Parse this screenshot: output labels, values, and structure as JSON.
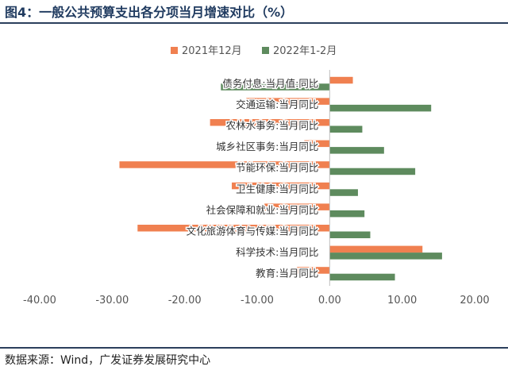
{
  "header": {
    "title": "图4：一般公共预算支出各分项当月增速对比（%）"
  },
  "footer": {
    "source": "数据来源：Wind，广发证券发展研究中心"
  },
  "chart_data": {
    "type": "bar",
    "orientation": "horizontal",
    "categories": [
      "债务付息:当月值:同比",
      "交通运输:当月同比",
      "农林水事务:当月同比",
      "城乡社区事务:当月同比",
      "节能环保:当月同比",
      "卫生健康:当月同比",
      "社会保障和就业:当月同比",
      "文化旅游体育与传媒:当月同比",
      "科学技术:当月同比",
      "教育:当月同比"
    ],
    "series": [
      {
        "name": "2021年12月",
        "color": "#F08050",
        "values": [
          3.2,
          -11.5,
          -16.5,
          -3.5,
          -29.0,
          -13.5,
          -9.0,
          -26.5,
          12.8,
          -4.5
        ]
      },
      {
        "name": "2022年1-2月",
        "color": "#5E8B5E",
        "values": [
          -15.0,
          14.0,
          4.5,
          7.5,
          11.8,
          3.9,
          4.8,
          5.6,
          15.5,
          9.0
        ]
      }
    ],
    "xlim": [
      -40,
      20
    ],
    "xticks": [
      "-40.00",
      "-30.00",
      "-20.00",
      "-10.00",
      "0.00",
      "10.00",
      "20.00"
    ],
    "legend_position": "top",
    "grid": false
  }
}
